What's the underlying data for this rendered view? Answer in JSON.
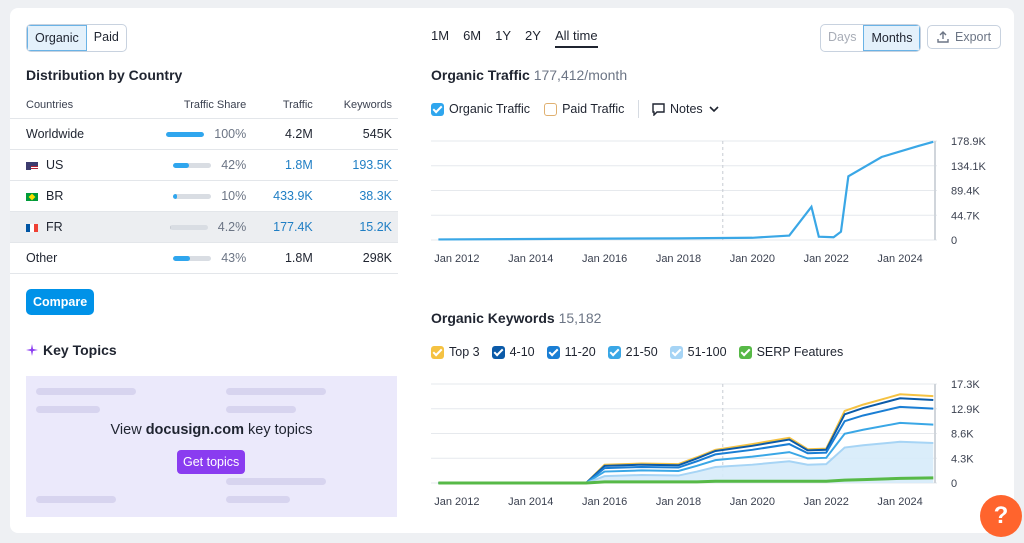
{
  "left_toggle": {
    "organic": "Organic",
    "paid": "Paid"
  },
  "distribution": {
    "title": "Distribution by Country",
    "headers": {
      "countries": "Countries",
      "share": "Traffic Share",
      "traffic": "Traffic",
      "keywords": "Keywords"
    },
    "rows": [
      {
        "country": "Worldwide",
        "share": "100%",
        "share_value": 100,
        "traffic": "4.2M",
        "keywords": "545K",
        "link": false
      },
      {
        "country": "US",
        "share": "42%",
        "share_value": 42,
        "traffic": "1.8M",
        "keywords": "193.5K",
        "link": true,
        "flag": "us-flag-icon"
      },
      {
        "country": "BR",
        "share": "10%",
        "share_value": 10,
        "traffic": "433.9K",
        "keywords": "38.3K",
        "link": true,
        "flag": "br-flag-icon"
      },
      {
        "country": "FR",
        "share": "4.2%",
        "share_value": 4.2,
        "traffic": "177.4K",
        "keywords": "15.2K",
        "link": true,
        "flag": "fr-flag-icon"
      },
      {
        "country": "Other",
        "share": "43%",
        "share_value": 43,
        "traffic": "1.8M",
        "keywords": "298K",
        "link": false
      }
    ],
    "compare_label": "Compare"
  },
  "key_topics": {
    "title": "Key Topics",
    "prefix": "View ",
    "domain": "docusign.com",
    "suffix": " key topics",
    "button": "Get topics"
  },
  "periods": [
    "1M",
    "6M",
    "1Y",
    "2Y",
    "All time"
  ],
  "active_period": "All time",
  "granularity": {
    "days": "Days",
    "months": "Months"
  },
  "export_label": "Export",
  "traffic_chart": {
    "title": "Organic Traffic",
    "value": "177,412/month",
    "legend": {
      "organic": "Organic Traffic",
      "paid": "Paid Traffic",
      "notes": "Notes"
    }
  },
  "keywords_chart": {
    "title": "Organic Keywords",
    "value": "15,182",
    "legend": [
      "Top 3",
      "4-10",
      "11-20",
      "21-50",
      "51-100",
      "SERP Features"
    ]
  },
  "colors": {
    "accent": "#0092e8",
    "traffic_line": "#3aa7e6",
    "top3": "#f5c242",
    "pos4_10": "#0b5aa8",
    "pos11_20": "#1a7ed4",
    "pos21_50": "#3aa7e6",
    "pos51_100": "#a6d4f5",
    "serp": "#57b947",
    "help": "#ff642d",
    "purple": "#8a3cf0"
  },
  "chart_data": [
    {
      "type": "line",
      "title": "Organic Traffic",
      "x_ticks": [
        "Jan 2012",
        "Jan 2014",
        "Jan 2016",
        "Jan 2018",
        "Jan 2020",
        "Jan 2022",
        "Jan 2024"
      ],
      "y_ticks": [
        "0",
        "44.7K",
        "89.4K",
        "134.1K",
        "178.9K"
      ],
      "ylim": [
        0,
        178900
      ],
      "series": [
        {
          "name": "Organic Traffic",
          "x": [
            2011.5,
            2016,
            2018,
            2020,
            2021,
            2021.6,
            2021.8,
            2022.2,
            2022.4,
            2022.6,
            2023.5,
            2024.5,
            2024.9
          ],
          "y": [
            1000,
            2500,
            3000,
            4000,
            8000,
            60000,
            6000,
            5000,
            15000,
            115000,
            150000,
            170000,
            177400
          ]
        }
      ]
    },
    {
      "type": "area",
      "title": "Organic Keywords",
      "x_ticks": [
        "Jan 2012",
        "Jan 2014",
        "Jan 2016",
        "Jan 2018",
        "Jan 2020",
        "Jan 2022",
        "Jan 2024"
      ],
      "y_ticks": [
        "0",
        "4.3K",
        "8.6K",
        "12.9K",
        "17.3K"
      ],
      "ylim": [
        0,
        17300
      ],
      "x": [
        2011.5,
        2015.5,
        2016,
        2017,
        2018,
        2018.5,
        2019,
        2020,
        2021,
        2021.5,
        2022,
        2022.5,
        2023,
        2024,
        2024.9
      ],
      "series": [
        {
          "name": "Top 3",
          "values": [
            0,
            0,
            3200,
            3400,
            3300,
            4500,
            5800,
            6800,
            7900,
            5900,
            6000,
            12600,
            13700,
            15500,
            15182
          ]
        },
        {
          "name": "4-10",
          "values": [
            0,
            0,
            3000,
            3200,
            3100,
            4300,
            5600,
            6500,
            7600,
            5700,
            5800,
            12000,
            13100,
            14800,
            14500
          ]
        },
        {
          "name": "11-20",
          "values": [
            0,
            0,
            2600,
            2800,
            2700,
            3800,
            5000,
            5800,
            6800,
            5200,
            5300,
            10800,
            11800,
            13300,
            13000
          ]
        },
        {
          "name": "21-50",
          "values": [
            0,
            0,
            2000,
            2200,
            2100,
            3000,
            4000,
            4600,
            5400,
            4300,
            4400,
            8600,
            9300,
            10500,
            10200
          ]
        },
        {
          "name": "51-100",
          "values": [
            0,
            0,
            1200,
            1400,
            1300,
            2000,
            2800,
            3200,
            3800,
            3200,
            3300,
            6200,
            6600,
            7200,
            7000
          ]
        },
        {
          "name": "SERP Features",
          "values": [
            0,
            0,
            200,
            200,
            200,
            200,
            300,
            300,
            300,
            300,
            300,
            500,
            600,
            800,
            900
          ]
        }
      ]
    }
  ]
}
